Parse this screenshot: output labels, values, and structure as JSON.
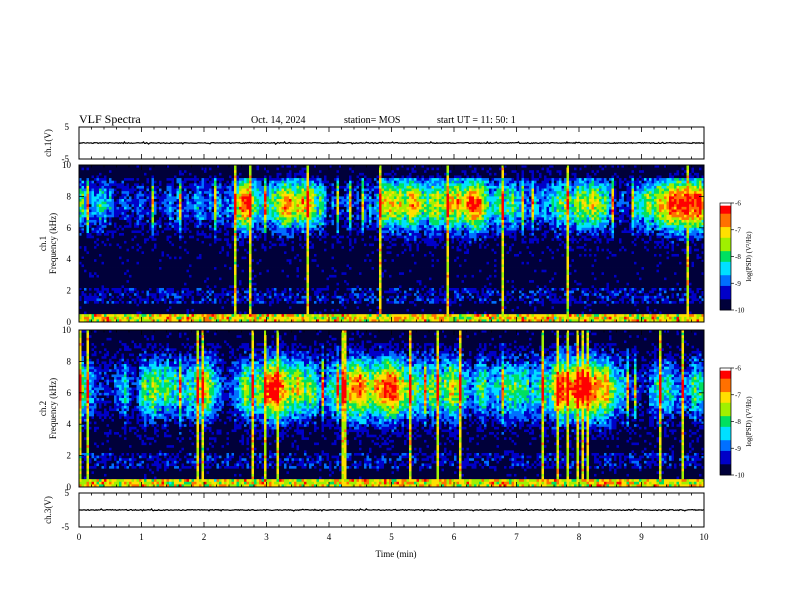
{
  "header": {
    "title": "VLF Spectra",
    "date": "Oct. 14, 2024",
    "station": "station= MOS",
    "start_ut": "start UT =   11: 50: 1"
  },
  "colorbar": {
    "label": "log(PSD) (V²/Hz)",
    "ticks": [
      "-6",
      "-7",
      "-8",
      "-9",
      "-10"
    ],
    "colormap": [
      "#00003a",
      "#0000c8",
      "#0070ff",
      "#00e0ff",
      "#00e060",
      "#a0f000",
      "#ffe000",
      "#ff7000",
      "#ff0000",
      "#ffffff"
    ]
  },
  "chart_data": [
    {
      "type": "line",
      "panel": "ch1-waveform",
      "ylabel": "ch.1(V)",
      "ylim": [
        -5,
        5
      ],
      "yticks": [
        "5",
        "-5"
      ],
      "xlim": [
        0,
        10
      ],
      "series": [
        {
          "values_description_note": "",
          "level": 0
        }
      ]
    },
    {
      "type": "heatmap",
      "panel": "ch1-spectrogram",
      "ylabel_top": "ch.1",
      "ylabel": "Frequency (kHz)",
      "xlim": [
        0,
        10
      ],
      "ylim": [
        0,
        10
      ],
      "yticks": [
        "0",
        "2",
        "4",
        "6",
        "8",
        "10"
      ],
      "zlim": [
        -10,
        -6
      ],
      "peak_band_khz": [
        6,
        9
      ],
      "seed": 7
    },
    {
      "type": "heatmap",
      "panel": "ch2-spectrogram",
      "ylabel_top": "ch.2",
      "ylabel": "Frequency (kHz)",
      "xlim": [
        0,
        10
      ],
      "ylim": [
        0,
        10
      ],
      "yticks": [
        "0",
        "2",
        "4",
        "6",
        "8",
        "10"
      ],
      "zlim": [
        -10,
        -6
      ],
      "peak_band_khz": [
        4.5,
        8
      ],
      "seed": 19
    },
    {
      "type": "line",
      "panel": "ch3-waveform",
      "ylabel": "ch.3(V)",
      "ylim": [
        -5,
        5
      ],
      "yticks": [
        "5",
        "-5"
      ],
      "xlim": [
        0,
        10
      ],
      "series": [
        {
          "level": 0
        }
      ]
    }
  ],
  "xaxis": {
    "label": "Time (min)",
    "ticks": [
      "0",
      "1",
      "2",
      "3",
      "4",
      "5",
      "6",
      "7",
      "8",
      "9",
      "10"
    ]
  }
}
